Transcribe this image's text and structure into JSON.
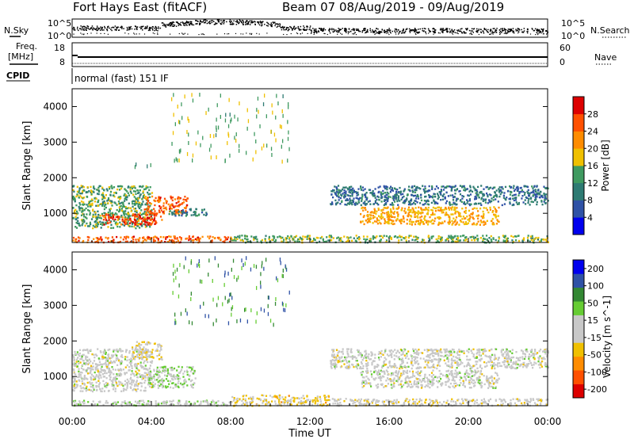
{
  "header": {
    "station": "Fort Hays East (fitACF)",
    "beam_info": "Beam 07  08/Aug/2019 - 09/Aug/2019"
  },
  "strip_labels": {
    "nsky": "N.Sky",
    "nsearch": "N.Search",
    "freq": "Freq.",
    "freq_unit": "[MHz]",
    "nave": "Nave",
    "cpid": "CPID",
    "cpid_value": "normal (fast) 151 IF"
  },
  "strip_ticks": {
    "noise_left": [
      "10^5",
      "10^0"
    ],
    "noise_right": [
      "10^5",
      "10^0"
    ],
    "freq_left": [
      "18",
      "8"
    ],
    "nave_right": [
      "60",
      "0"
    ]
  },
  "chart_data": [
    {
      "type": "heatmap",
      "title": "",
      "ylabel": "Slant Range [km]",
      "xlabel": "",
      "xlim": [
        "00:00",
        "24:00"
      ],
      "ylim": [
        180,
        4500
      ],
      "y_ticks": [
        1000,
        2000,
        3000,
        4000
      ],
      "colorbar": {
        "label": "Power [dB]",
        "ticks": [
          4,
          8,
          12,
          16,
          20,
          24,
          28
        ],
        "range": [
          0,
          32
        ],
        "colors": [
          "#0000ee",
          "#2f52a6",
          "#2e7b73",
          "#3f9a60",
          "#f0c000",
          "#ff8c00",
          "#ff5000",
          "#dd0000"
        ]
      },
      "regions": [
        {
          "t": [
            0.0,
            4.0
          ],
          "r": [
            600,
            1800
          ],
          "v": 14
        },
        {
          "t": [
            1.5,
            4.5
          ],
          "r": [
            700,
            1000
          ],
          "v": 27
        },
        {
          "t": [
            3.6,
            5.8
          ],
          "r": [
            1000,
            1500
          ],
          "v": 25
        },
        {
          "t": [
            4.8,
            6.8
          ],
          "r": [
            950,
            1150
          ],
          "v": 10
        },
        {
          "t": [
            0.0,
            8.0
          ],
          "r": [
            200,
            380
          ],
          "v": 25
        },
        {
          "t": [
            8.0,
            24.0
          ],
          "r": [
            200,
            400
          ],
          "v": 15
        },
        {
          "t": [
            13.0,
            24.0
          ],
          "r": [
            1250,
            1800
          ],
          "v": 9
        },
        {
          "t": [
            14.5,
            21.5
          ],
          "r": [
            700,
            1200
          ],
          "v": 20
        },
        {
          "t": [
            3.0,
            4.0
          ],
          "r": [
            2300,
            2700
          ],
          "v": 11
        },
        {
          "t": [
            5.0,
            11.0
          ],
          "r": [
            2500,
            4400
          ],
          "v": 15
        }
      ]
    },
    {
      "type": "heatmap",
      "title": "",
      "ylabel": "Slant Range [km]",
      "xlabel": "Time UT",
      "xlim": [
        "00:00",
        "24:00"
      ],
      "x_ticks": [
        "00:00",
        "04:00",
        "08:00",
        "12:00",
        "16:00",
        "20:00",
        "00:00"
      ],
      "ylim": [
        180,
        4500
      ],
      "y_ticks": [
        1000,
        2000,
        3000,
        4000
      ],
      "colorbar": {
        "label": "Velocity [m s^-1]",
        "ticks": [
          200,
          100,
          50,
          15,
          -15,
          -50,
          -100,
          -200
        ],
        "range": [
          -250,
          250
        ],
        "colors": [
          "#dd0000",
          "#ff5000",
          "#ff8c00",
          "#f0c000",
          "#c8c8c8",
          "#c8c8c8",
          "#66cc33",
          "#338833",
          "#2f52a6",
          "#0000ee"
        ]
      },
      "regions": [
        {
          "t": [
            0.0,
            4.0
          ],
          "r": [
            600,
            1800
          ],
          "v": 0
        },
        {
          "t": [
            3.8,
            6.2
          ],
          "r": [
            700,
            1300
          ],
          "v": 35
        },
        {
          "t": [
            3.0,
            4.5
          ],
          "r": [
            1500,
            2000
          ],
          "v": -40
        },
        {
          "t": [
            0.0,
            8.0
          ],
          "r": [
            200,
            350
          ],
          "v": 30
        },
        {
          "t": [
            8.0,
            13.0
          ],
          "r": [
            200,
            500
          ],
          "v": -45
        },
        {
          "t": [
            13.0,
            24.0
          ],
          "r": [
            1250,
            1800
          ],
          "v": 0
        },
        {
          "t": [
            14.5,
            21.5
          ],
          "r": [
            700,
            1200
          ],
          "v": 0
        },
        {
          "t": [
            13.0,
            24.0
          ],
          "r": [
            200,
            400
          ],
          "v": -10
        },
        {
          "t": [
            5.0,
            11.0
          ],
          "r": [
            2500,
            4400
          ],
          "v": 120
        }
      ]
    }
  ]
}
